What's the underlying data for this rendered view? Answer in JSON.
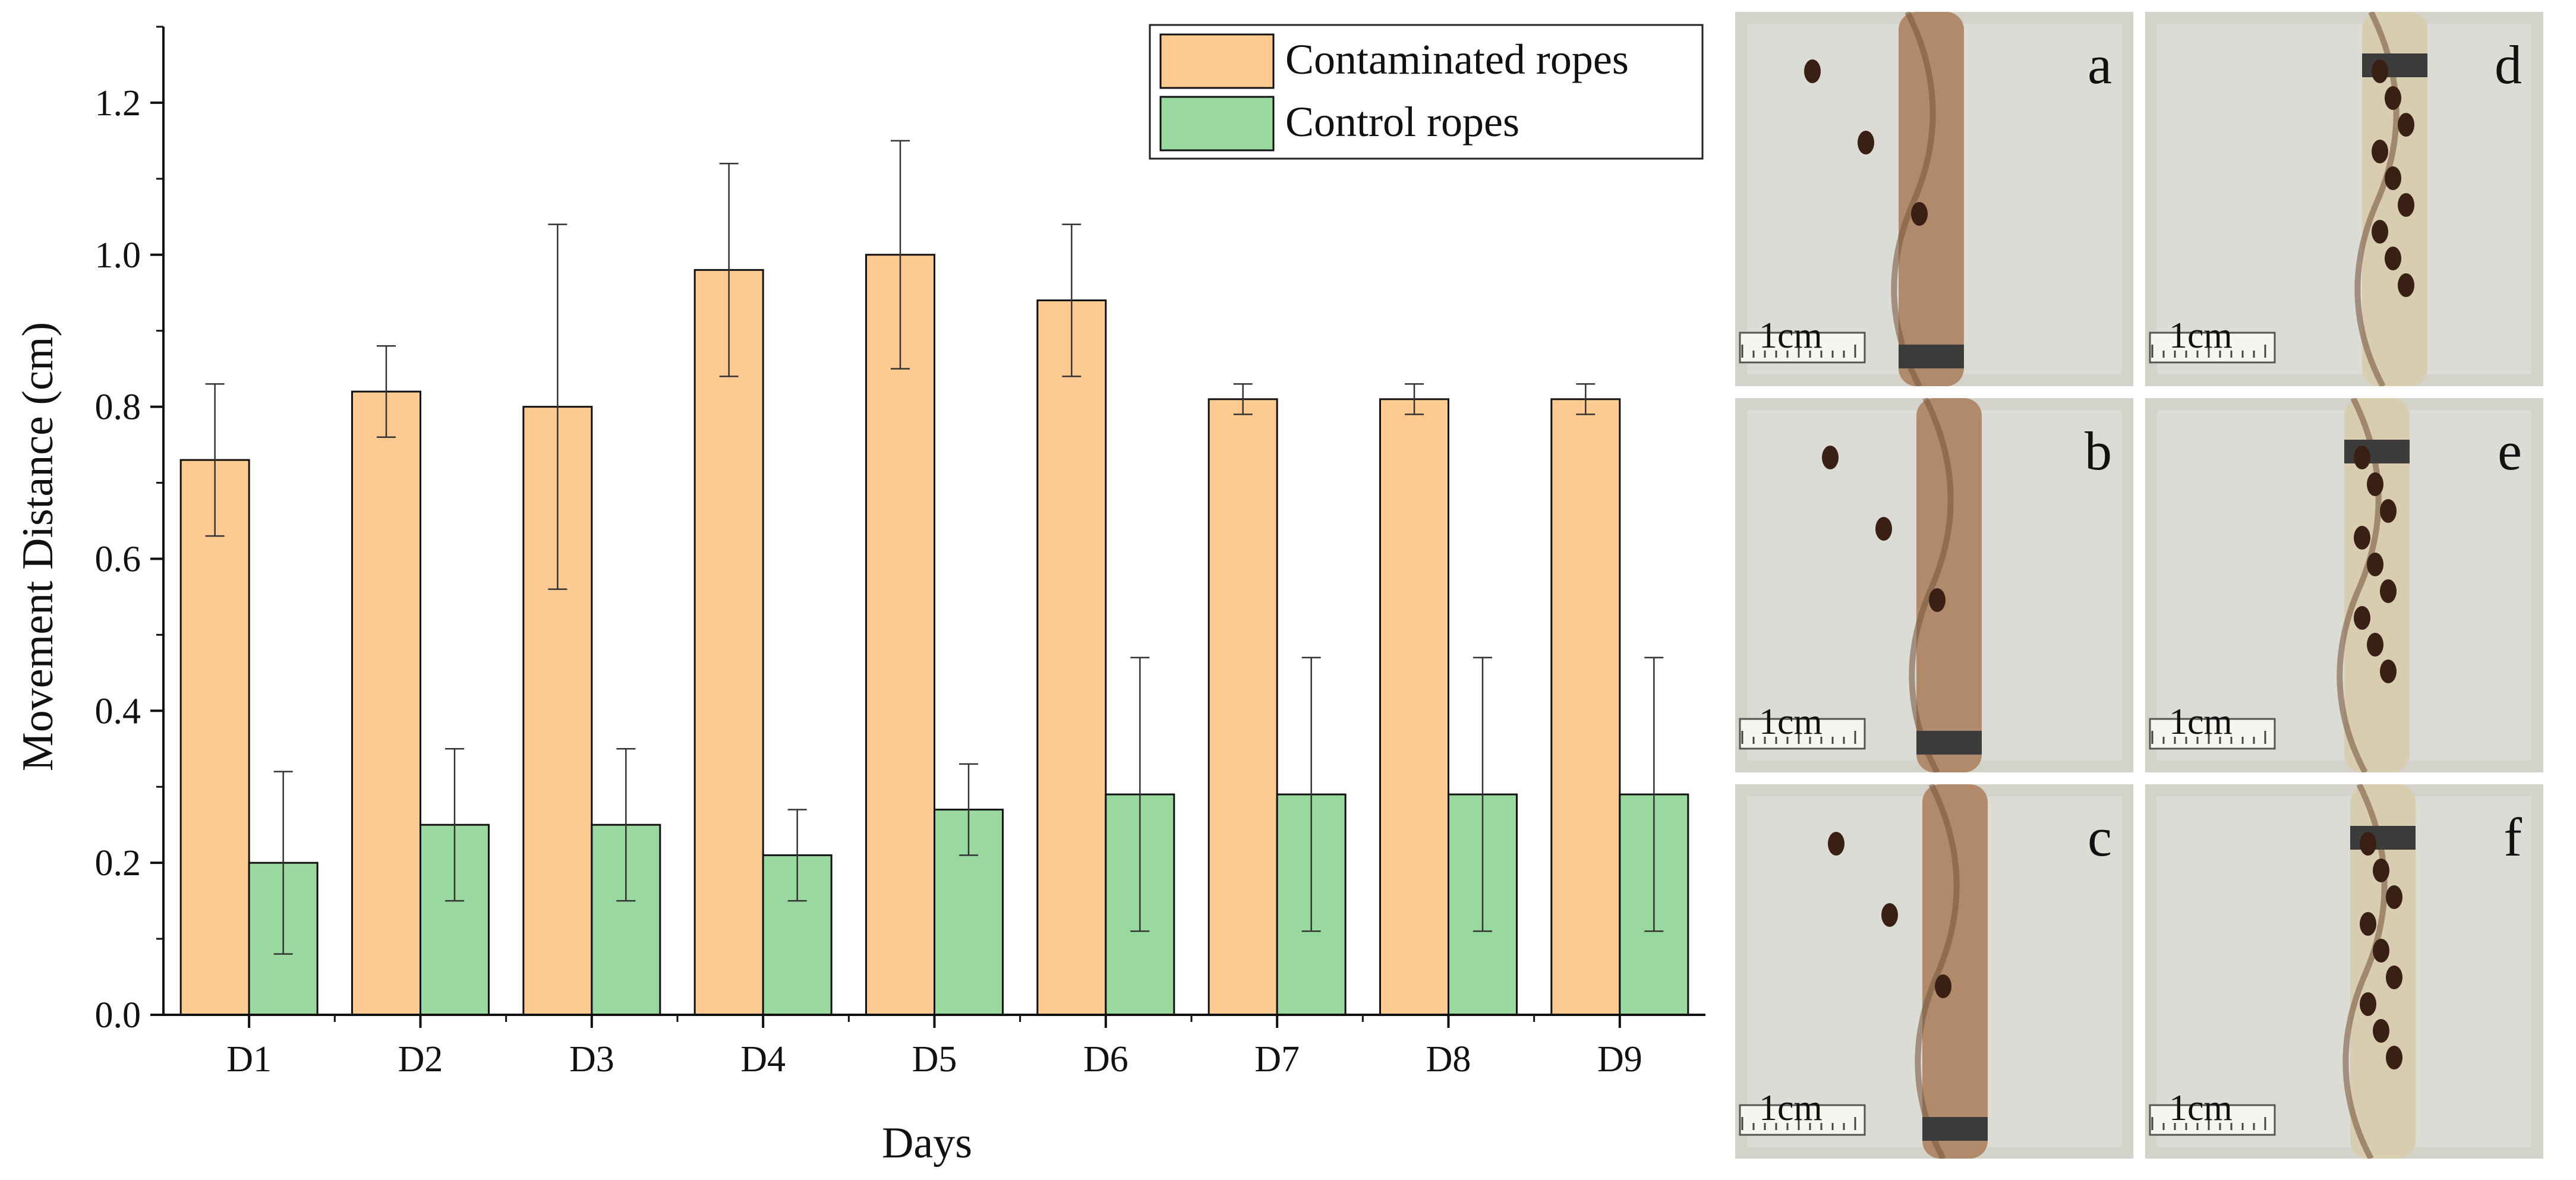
{
  "chart_data": {
    "type": "bar",
    "title": "",
    "xlabel": "Days",
    "ylabel": "Movement Distance (cm)",
    "categories": [
      "D1",
      "D2",
      "D3",
      "D4",
      "D5",
      "D6",
      "D7",
      "D8",
      "D9"
    ],
    "ylim": [
      0.0,
      1.3
    ],
    "yticks": [
      "0.0",
      "0.2",
      "0.4",
      "0.6",
      "0.8",
      "1.0",
      "1.2"
    ],
    "legend_position": "top-right",
    "series": [
      {
        "name": "Contaminated ropes",
        "color": "#FDCB91",
        "values": [
          0.73,
          0.82,
          0.8,
          0.98,
          1.0,
          0.94,
          0.81,
          0.81,
          0.81
        ],
        "error": [
          0.1,
          0.06,
          0.24,
          0.14,
          0.15,
          0.1,
          0.02,
          0.02,
          0.02
        ]
      },
      {
        "name": "Control ropes",
        "color": "#99D89E",
        "values": [
          0.2,
          0.25,
          0.25,
          0.21,
          0.27,
          0.29,
          0.29,
          0.29,
          0.29
        ],
        "error": [
          0.12,
          0.1,
          0.1,
          0.06,
          0.06,
          0.18,
          0.18,
          0.18,
          0.18
        ]
      }
    ]
  },
  "photos": {
    "scale_label": "1cm",
    "panels": [
      {
        "letter": "a"
      },
      {
        "letter": "d"
      },
      {
        "letter": "b"
      },
      {
        "letter": "e"
      },
      {
        "letter": "c"
      },
      {
        "letter": "f"
      }
    ]
  }
}
